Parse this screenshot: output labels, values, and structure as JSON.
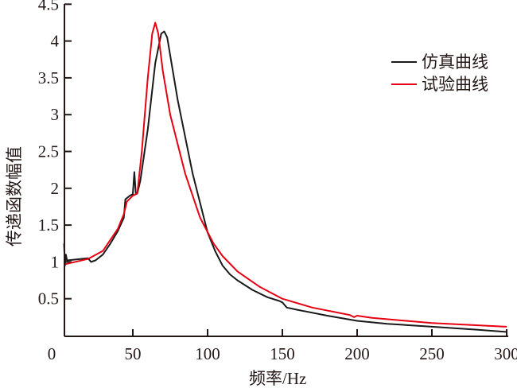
{
  "chart_data": {
    "type": "line",
    "title": "",
    "xlabel": "频率/Hz",
    "ylabel": "传递函数幅值",
    "xlim": [
      4,
      300
    ],
    "ylim": [
      0,
      4.5
    ],
    "xticks": [
      0,
      50,
      100,
      150,
      200,
      250,
      300
    ],
    "yticks": [
      0.5,
      1,
      1.5,
      2,
      2.5,
      3,
      3.5,
      4,
      4.5
    ],
    "xtick_labels": [
      "0",
      "50",
      "100",
      "150",
      "200",
      "250",
      "300"
    ],
    "ytick_labels": [
      "0.5",
      "1",
      "1.5",
      "2",
      "2.5",
      "3",
      "3.5",
      "4",
      "4.5"
    ],
    "grid": false,
    "legend_position": "top-right",
    "series": [
      {
        "name": "仿真曲线",
        "color": "#1a1a1a",
        "x": [
          4,
          4.6,
          5.2,
          6,
          20,
          22,
          25,
          30,
          35,
          40,
          44,
          45,
          48,
          50,
          51,
          52,
          53,
          55,
          60,
          65,
          69,
          71,
          73,
          80,
          90,
          100,
          105,
          110,
          115,
          120,
          130,
          140,
          148,
          150,
          153,
          160,
          180,
          200,
          220,
          250,
          280,
          300
        ],
        "y": [
          1.25,
          0.95,
          1.1,
          1.02,
          1.05,
          1.0,
          1.02,
          1.1,
          1.25,
          1.42,
          1.6,
          1.85,
          1.9,
          1.92,
          2.22,
          1.92,
          1.93,
          2.1,
          2.8,
          3.7,
          4.1,
          4.13,
          4.05,
          3.2,
          2.2,
          1.4,
          1.15,
          0.95,
          0.83,
          0.75,
          0.62,
          0.52,
          0.47,
          0.45,
          0.38,
          0.35,
          0.27,
          0.2,
          0.16,
          0.12,
          0.08,
          0.05
        ]
      },
      {
        "name": "试验曲线",
        "color": "#e60012",
        "x": [
          5,
          20,
          30,
          40,
          44,
          46,
          50,
          53,
          56,
          60,
          63,
          65,
          67,
          70,
          75,
          80,
          85,
          95,
          104,
          110,
          120,
          135,
          150,
          170,
          195,
          198,
          200,
          203,
          210,
          250,
          300
        ],
        "y": [
          0.97,
          1.04,
          1.15,
          1.45,
          1.65,
          1.82,
          1.9,
          1.93,
          2.5,
          3.5,
          4.1,
          4.25,
          4.1,
          3.6,
          3.0,
          2.6,
          2.2,
          1.6,
          1.25,
          1.08,
          0.87,
          0.66,
          0.5,
          0.38,
          0.28,
          0.25,
          0.27,
          0.26,
          0.24,
          0.17,
          0.12
        ]
      }
    ]
  }
}
